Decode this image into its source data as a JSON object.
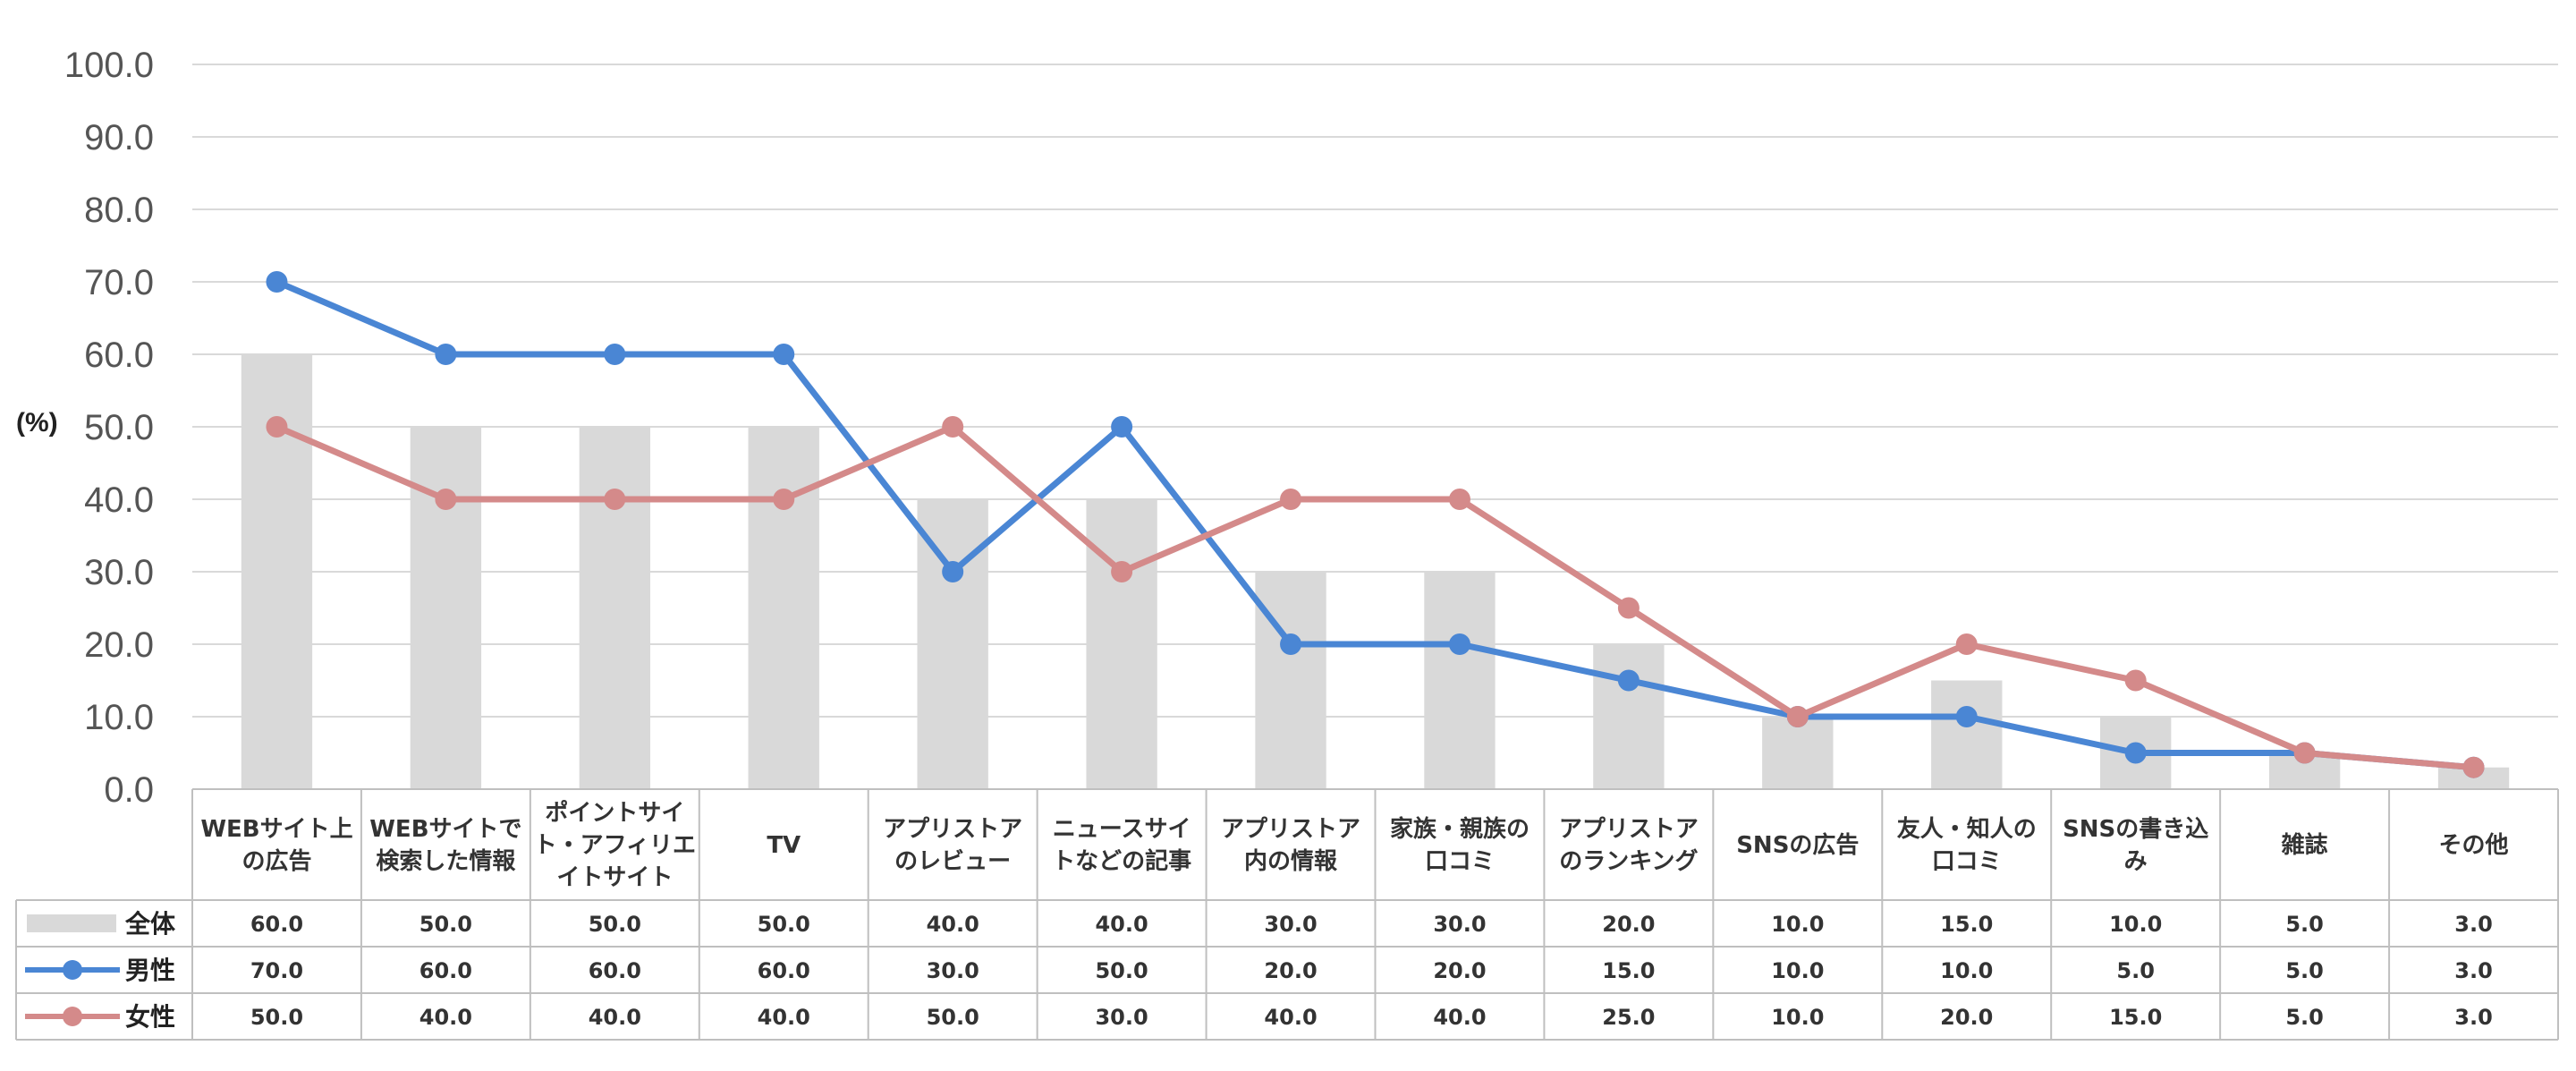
{
  "chart_data": {
    "type": "bar",
    "title": "",
    "ylabel": "(%)",
    "ylim": [
      0,
      100
    ],
    "yticks": [
      "0.0",
      "10.0",
      "20.0",
      "30.0",
      "40.0",
      "50.0",
      "60.0",
      "70.0",
      "80.0",
      "90.0",
      "100.0"
    ],
    "grid": true,
    "categories": [
      [
        "WEBサイト上",
        "の広告"
      ],
      [
        "WEBサイトで",
        "検索した情報"
      ],
      [
        "ポイントサイ",
        "ト・アフィリエ",
        "イトサイト"
      ],
      [
        "TV"
      ],
      [
        "アプリストア",
        "のレビュー"
      ],
      [
        "ニュースサイ",
        "トなどの記事"
      ],
      [
        "アプリストア",
        "内の情報"
      ],
      [
        "家族・親族の",
        "口コミ"
      ],
      [
        "アプリストア",
        "のランキング"
      ],
      [
        "SNSの広告"
      ],
      [
        "友人・知人の",
        "口コミ"
      ],
      [
        "SNSの書き込",
        "み"
      ],
      [
        "雑誌"
      ],
      [
        "その他"
      ]
    ],
    "series": [
      {
        "name": "全体",
        "kind": "bar",
        "color": "#d9d9d9",
        "values": [
          60.0,
          50.0,
          50.0,
          50.0,
          40.0,
          40.0,
          30.0,
          30.0,
          20.0,
          10.0,
          15.0,
          10.0,
          5.0,
          3.0
        ],
        "labels": [
          "60.0",
          "50.0",
          "50.0",
          "50.0",
          "40.0",
          "40.0",
          "30.0",
          "30.0",
          "20.0",
          "10.0",
          "15.0",
          "10.0",
          "5.0",
          "3.0"
        ]
      },
      {
        "name": "男性",
        "kind": "line",
        "color": "#4a86d4",
        "values": [
          70.0,
          60.0,
          60.0,
          60.0,
          30.0,
          50.0,
          20.0,
          20.0,
          15.0,
          10.0,
          10.0,
          5.0,
          5.0,
          3.0
        ],
        "labels": [
          "70.0",
          "60.0",
          "60.0",
          "60.0",
          "30.0",
          "50.0",
          "20.0",
          "20.0",
          "15.0",
          "10.0",
          "10.0",
          "5.0",
          "5.0",
          "3.0"
        ]
      },
      {
        "name": "女性",
        "kind": "line",
        "color": "#d48a8a",
        "values": [
          50.0,
          40.0,
          40.0,
          40.0,
          50.0,
          30.0,
          40.0,
          40.0,
          25.0,
          10.0,
          20.0,
          15.0,
          5.0,
          3.0
        ],
        "labels": [
          "50.0",
          "40.0",
          "40.0",
          "40.0",
          "50.0",
          "30.0",
          "40.0",
          "40.0",
          "25.0",
          "10.0",
          "20.0",
          "15.0",
          "5.0",
          "3.0"
        ]
      }
    ]
  }
}
